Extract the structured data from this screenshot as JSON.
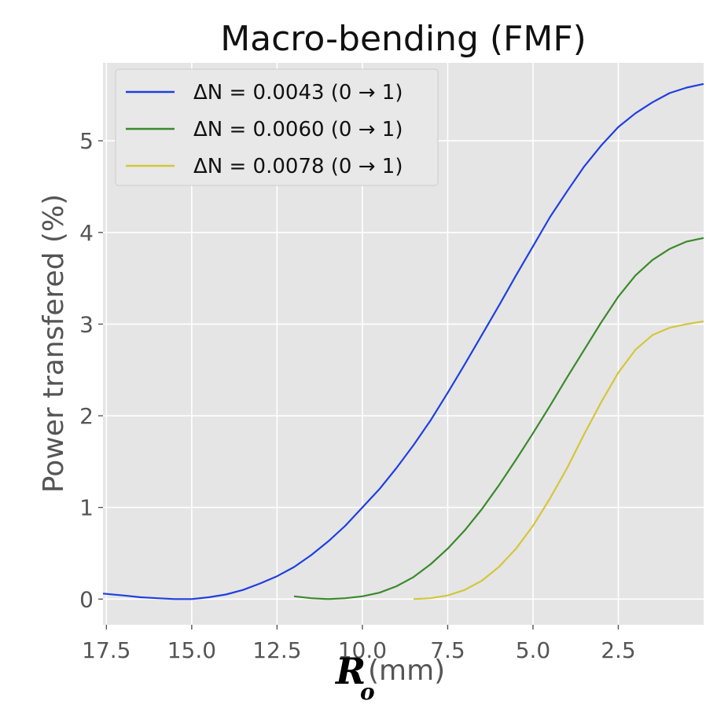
{
  "chart_data": {
    "type": "line",
    "title": "Macro-bending (FMF)",
    "ylabel": "Power transfered (%)",
    "xlabel": {
      "symbol": "R",
      "subscript": "o",
      "unit": "(mm)"
    },
    "xlim": [
      17.6,
      0.0
    ],
    "ylim": [
      -0.28,
      5.85
    ],
    "x_reversed": true,
    "grid": true,
    "legend_position": "upper-left",
    "x_ticks": [
      17.5,
      15.0,
      12.5,
      10.0,
      7.5,
      5.0,
      2.5
    ],
    "x_tick_labels": [
      "17.5",
      "15.0",
      "12.5",
      "10.0",
      "7.5",
      "5.0",
      "2.5"
    ],
    "y_ticks": [
      0,
      1,
      2,
      3,
      4,
      5
    ],
    "y_tick_labels": [
      "0",
      "1",
      "2",
      "3",
      "4",
      "5"
    ],
    "series": [
      {
        "name": "ΔN = 0.0043 (0 → 1)",
        "color": "#1f3fe0",
        "x": [
          17.6,
          17.0,
          16.5,
          16.0,
          15.5,
          15.0,
          14.5,
          14.0,
          13.5,
          13.0,
          12.5,
          12.0,
          11.5,
          11.0,
          10.5,
          10.0,
          9.5,
          9.0,
          8.5,
          8.0,
          7.5,
          7.0,
          6.5,
          6.0,
          5.5,
          5.0,
          4.5,
          4.0,
          3.5,
          3.0,
          2.5,
          2.0,
          1.5,
          1.0,
          0.5,
          0.0
        ],
        "y": [
          0.06,
          0.04,
          0.02,
          0.01,
          0.0,
          0.0,
          0.02,
          0.05,
          0.1,
          0.17,
          0.25,
          0.35,
          0.48,
          0.63,
          0.8,
          1.0,
          1.2,
          1.43,
          1.68,
          1.95,
          2.25,
          2.56,
          2.88,
          3.2,
          3.53,
          3.85,
          4.17,
          4.45,
          4.72,
          4.95,
          5.15,
          5.3,
          5.42,
          5.52,
          5.58,
          5.62
        ]
      },
      {
        "name": "ΔN = 0.0060 (0 → 1)",
        "color": "#3a8a2a",
        "x": [
          12.0,
          11.5,
          11.0,
          10.5,
          10.0,
          9.5,
          9.0,
          8.5,
          8.0,
          7.5,
          7.0,
          6.5,
          6.0,
          5.5,
          5.0,
          4.5,
          4.0,
          3.5,
          3.0,
          2.5,
          2.0,
          1.5,
          1.0,
          0.5,
          0.0
        ],
        "y": [
          0.03,
          0.01,
          0.0,
          0.01,
          0.03,
          0.07,
          0.14,
          0.24,
          0.38,
          0.55,
          0.75,
          0.98,
          1.24,
          1.52,
          1.81,
          2.11,
          2.42,
          2.72,
          3.02,
          3.3,
          3.53,
          3.7,
          3.82,
          3.9,
          3.94
        ]
      },
      {
        "name": "ΔN = 0.0078 (0 → 1)",
        "color": "#d4c63a",
        "x": [
          8.5,
          8.0,
          7.5,
          7.0,
          6.5,
          6.0,
          5.5,
          5.0,
          4.5,
          4.0,
          3.5,
          3.0,
          2.5,
          2.0,
          1.5,
          1.0,
          0.5,
          0.0
        ],
        "y": [
          0.0,
          0.01,
          0.04,
          0.1,
          0.2,
          0.35,
          0.55,
          0.8,
          1.1,
          1.43,
          1.8,
          2.15,
          2.47,
          2.72,
          2.88,
          2.96,
          3.0,
          3.03
        ]
      }
    ]
  }
}
